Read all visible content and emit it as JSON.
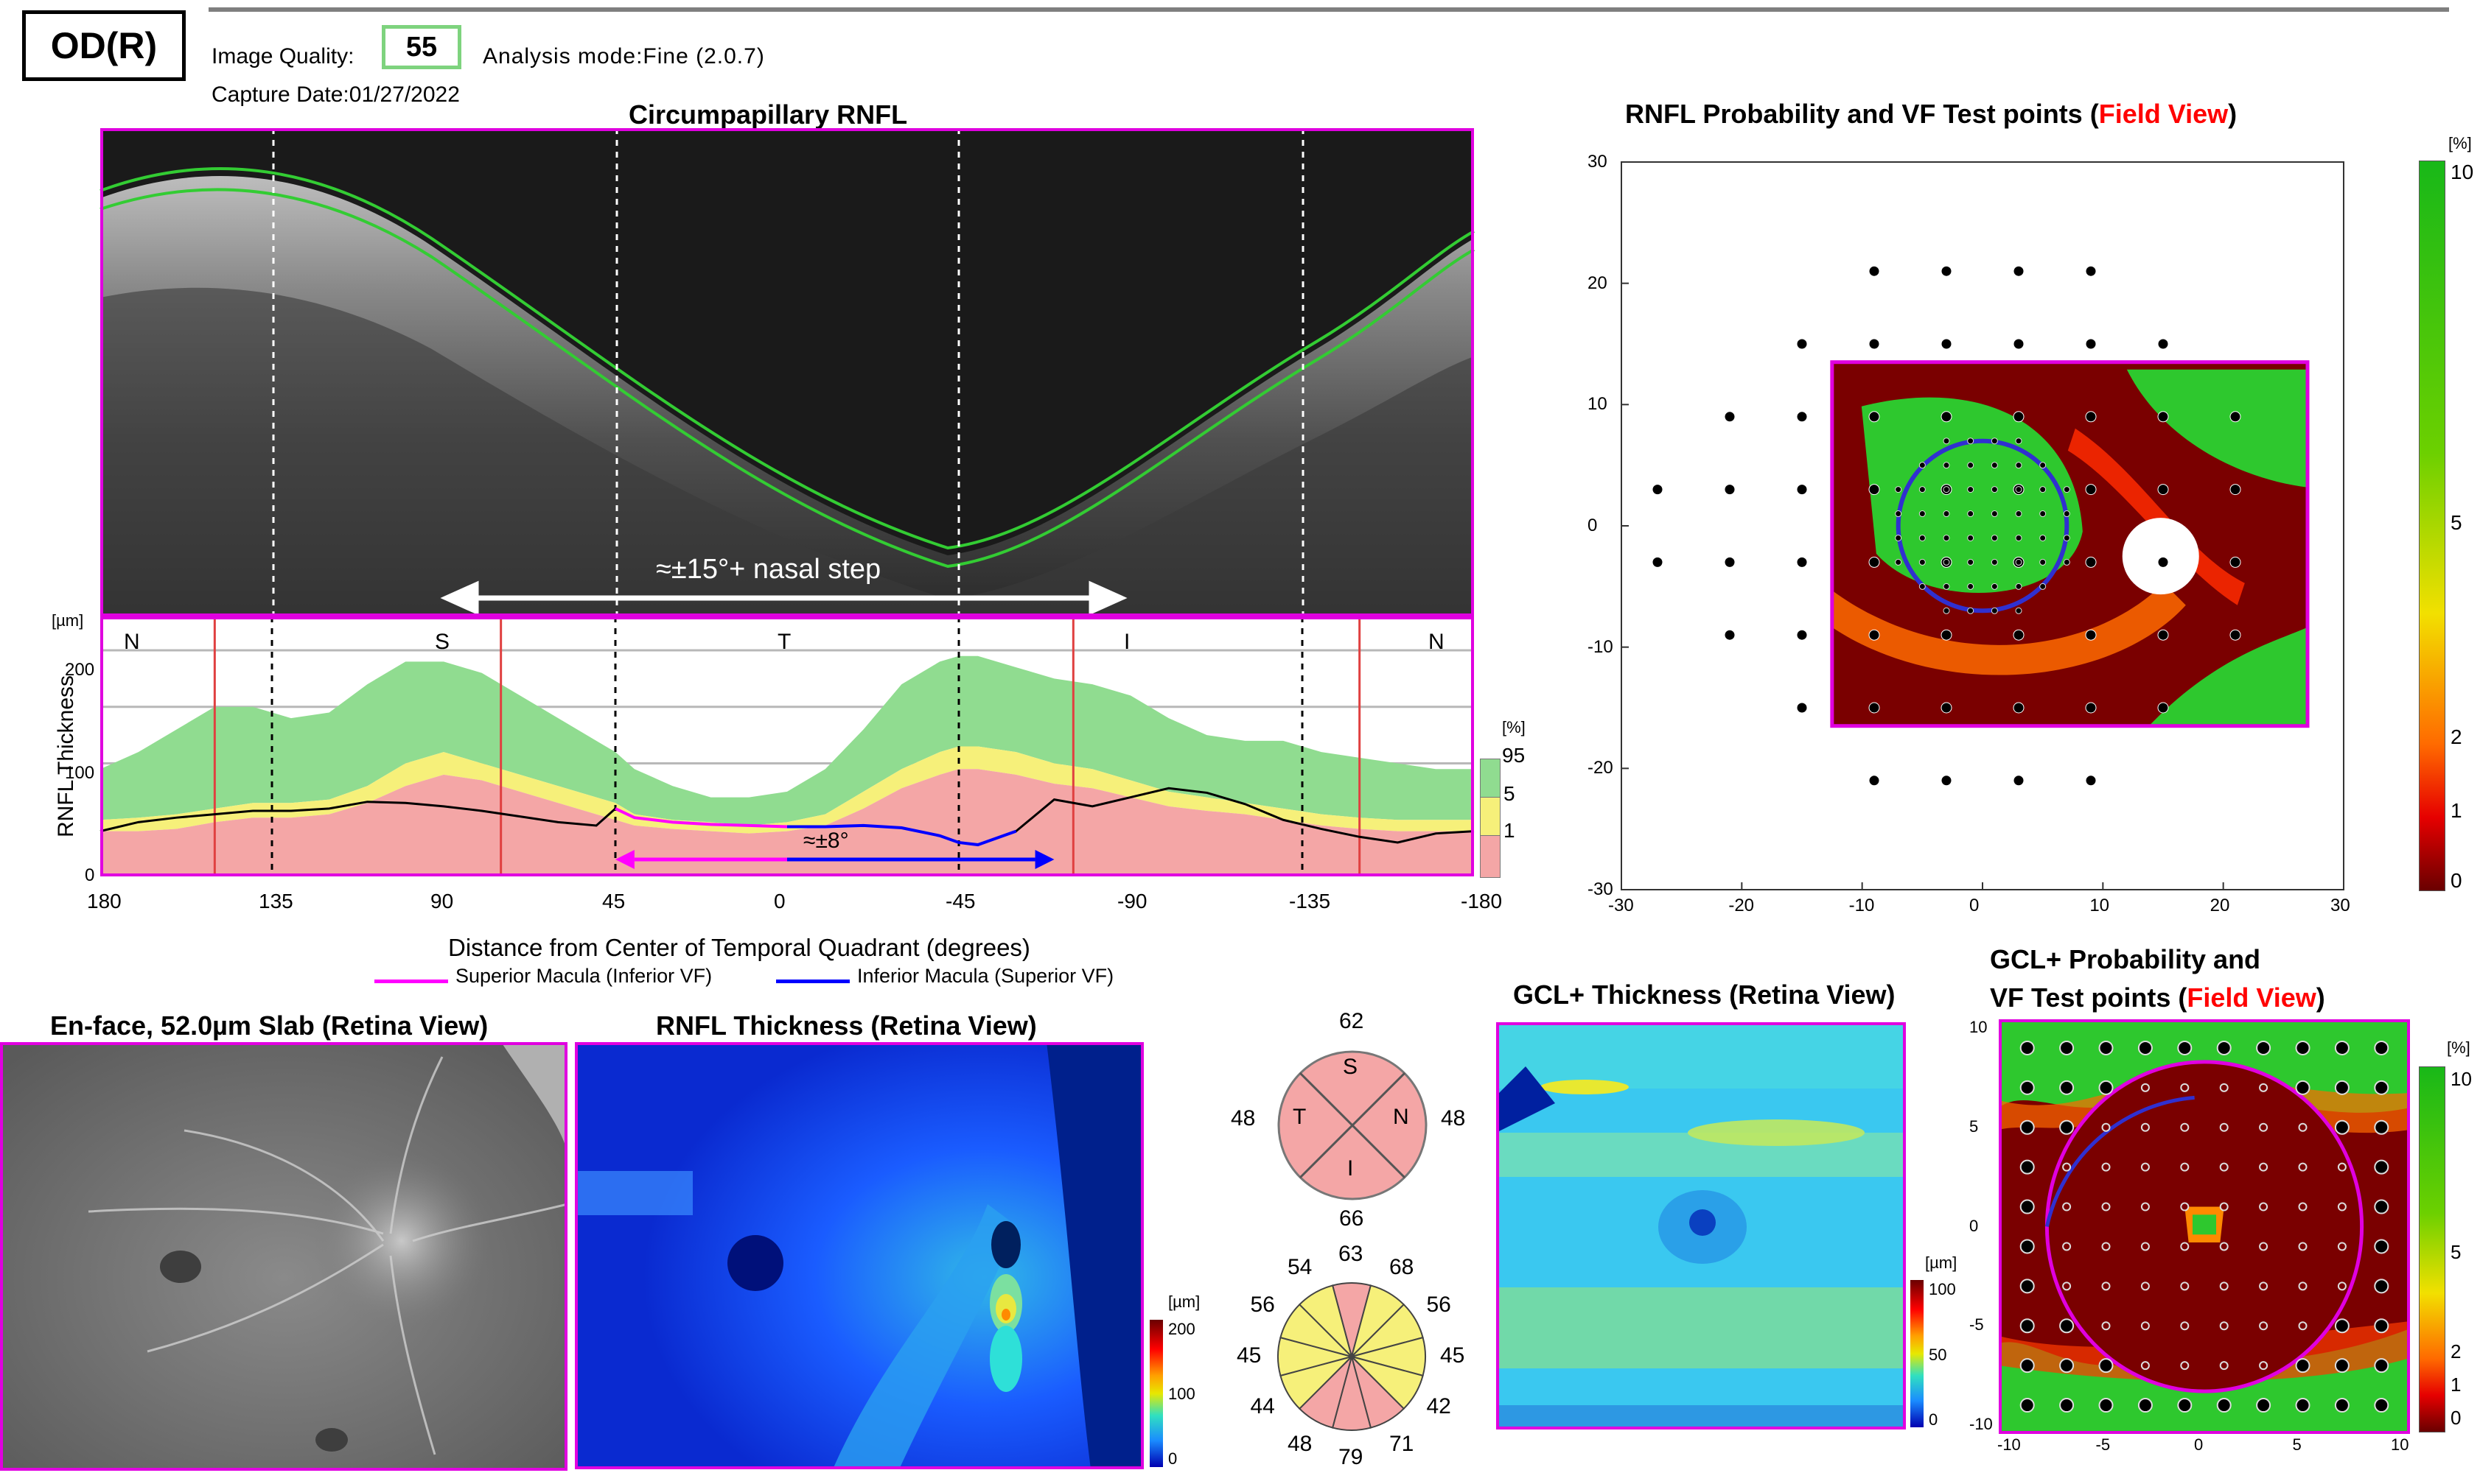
{
  "header": {
    "eye": "OD(R)",
    "image_quality_label": "Image Quality:",
    "image_quality_value": "55",
    "analysis_mode": "Analysis mode:Fine (2.0.7)",
    "capture_date": "Capture Date:01/27/2022"
  },
  "cprnfl": {
    "title": "Circumpapillary RNFL",
    "annotation_top": "≈±15°+ nasal step",
    "annotation_bottom": "≈±8°",
    "y_unit": "[µm]",
    "y_label": "RNFL Thickness",
    "y_ticks": [
      "200",
      "100",
      "0"
    ],
    "sector_labels": [
      "N",
      "S",
      "T",
      "I",
      "N"
    ],
    "x_ticks": [
      "180",
      "135",
      "90",
      "45",
      "0",
      "-45",
      "-90",
      "-135",
      "-180"
    ],
    "x_label": "Distance from Center of Temporal Quadrant (degrees)",
    "percent_unit": "[%]",
    "percent_ticks": [
      "95",
      "5",
      "1"
    ],
    "legend": [
      {
        "label": "Superior Macula (Inferior VF)",
        "color": "#ff00ff"
      },
      {
        "label": "Inferior Macula (Superior VF)",
        "color": "#0000ff"
      }
    ]
  },
  "chart_data": {
    "type": "line",
    "x": [
      180,
      170,
      160,
      150,
      140,
      130,
      120,
      110,
      100,
      90,
      80,
      70,
      60,
      50,
      45,
      40,
      30,
      20,
      10,
      0,
      -10,
      -20,
      -30,
      -40,
      -45,
      -50,
      -60,
      -70,
      -80,
      -90,
      -100,
      -110,
      -120,
      -130,
      -140,
      -150,
      -160,
      -170,
      -180
    ],
    "series": [
      {
        "name": "Superior Macula (Inferior VF)",
        "x_range": [
          45,
          0
        ]
      },
      {
        "name": "Inferior Macula (Superior VF)",
        "x_range": [
          0,
          -60
        ]
      },
      {
        "values": [
          40,
          48,
          52,
          55,
          58,
          58,
          60,
          66,
          65,
          62,
          58,
          53,
          48,
          45,
          60,
          52,
          48,
          46,
          45,
          44,
          44,
          45,
          43,
          36,
          30,
          28,
          40,
          68,
          62,
          70,
          78,
          74,
          64,
          50,
          42,
          35,
          30,
          38,
          40
        ]
      }
    ],
    "normative_bands": {
      "p95": [
        95,
        110,
        130,
        150,
        150,
        140,
        145,
        170,
        190,
        190,
        180,
        160,
        140,
        120,
        110,
        95,
        80,
        70,
        70,
        75,
        95,
        130,
        170,
        190,
        195,
        195,
        185,
        175,
        170,
        160,
        140,
        125,
        120,
        120,
        110,
        105,
        100,
        95,
        95
      ],
      "p5": [
        50,
        52,
        55,
        60,
        65,
        65,
        68,
        80,
        100,
        110,
        100,
        90,
        80,
        70,
        65,
        55,
        50,
        48,
        45,
        48,
        55,
        75,
        95,
        110,
        115,
        115,
        110,
        100,
        95,
        85,
        75,
        70,
        65,
        60,
        55,
        52,
        50,
        50,
        50
      ],
      "p1": [
        40,
        40,
        42,
        48,
        52,
        52,
        55,
        65,
        80,
        90,
        85,
        75,
        65,
        55,
        50,
        45,
        42,
        40,
        38,
        40,
        45,
        60,
        78,
        90,
        95,
        95,
        90,
        82,
        78,
        70,
        62,
        58,
        55,
        50,
        45,
        42,
        40,
        40,
        40
      ]
    },
    "sector_boundaries": [
      135,
      45,
      -45,
      -135
    ],
    "xlim": [
      180,
      -180
    ],
    "ylim": [
      0,
      200
    ]
  },
  "rnfl_prob": {
    "title_main": "RNFL Probability and VF Test points (",
    "title_red": "Field View",
    "title_end": ")",
    "y_ticks": [
      "30",
      "20",
      "10",
      "0",
      "-10",
      "-20",
      "-30"
    ],
    "x_ticks": [
      "-30",
      "-20",
      "-10",
      "0",
      "10",
      "20",
      "30"
    ],
    "scale_unit": "[%]",
    "scale_ticks": [
      "10",
      "5",
      "2",
      "1",
      "0"
    ]
  },
  "enface": {
    "title": "En-face, 52.0µm Slab (Retina View)"
  },
  "rnfl_thickness": {
    "title": "RNFL Thickness (Retina View)",
    "scale_unit": "[µm]",
    "scale_ticks": [
      "200",
      "100",
      "0"
    ]
  },
  "quadrants": {
    "top": "62",
    "left": "48",
    "right": "48",
    "bottom": "66",
    "labels": [
      "S",
      "T",
      "N",
      "I"
    ]
  },
  "clock": {
    "values": [
      "63",
      "68",
      "56",
      "45",
      "42",
      "71",
      "79",
      "48",
      "44",
      "45",
      "56",
      "54"
    ]
  },
  "gcl_thickness": {
    "title": "GCL+ Thickness (Retina View)",
    "scale_unit": "[µm]",
    "scale_ticks": [
      "100",
      "50",
      "0"
    ]
  },
  "gcl_prob": {
    "title_line1": "GCL+ Probability and",
    "title_line2": "VF Test points (",
    "title_red": "Field View",
    "title_end": ")",
    "y_ticks": [
      "10",
      "5",
      "0",
      "-5",
      "-10"
    ],
    "x_ticks": [
      "-10",
      "-5",
      "0",
      "5",
      "10"
    ],
    "scale_unit": "[%]",
    "scale_ticks": [
      "10",
      "5",
      "2",
      "1",
      "0"
    ]
  }
}
